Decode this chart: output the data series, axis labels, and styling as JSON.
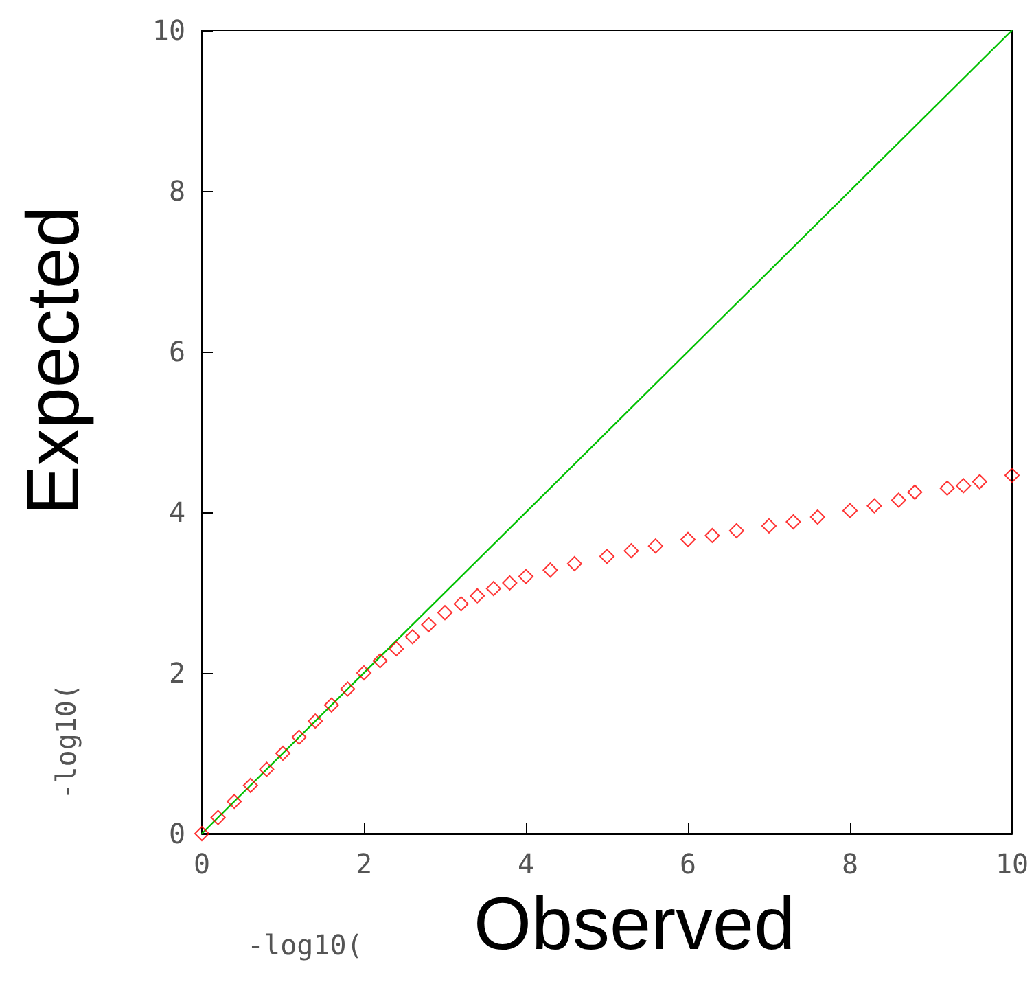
{
  "chart_data": {
    "type": "scatter",
    "xlabel": "-log10(",
    "ylabel": "-log10(",
    "annotations": [
      "Observed",
      "Expected"
    ],
    "xlim": [
      0,
      10
    ],
    "ylim": [
      0,
      10
    ],
    "xticks": [
      0,
      2,
      4,
      6,
      8,
      10
    ],
    "yticks": [
      0,
      2,
      4,
      6,
      8,
      10
    ],
    "grid": false,
    "marker": "diamond",
    "series": [
      {
        "color": "#ff0000",
        "x": [
          0,
          0.2,
          0.4,
          0.6,
          0.8,
          1,
          1.2,
          1.4,
          1.6,
          1.8,
          2,
          2.2,
          2.4,
          2.6,
          2.8,
          3,
          3.2,
          3.4,
          3.6,
          3.8,
          4,
          4.3,
          4.6,
          5,
          5.3,
          5.6,
          6,
          6.3,
          6.6,
          7,
          7.3,
          7.6,
          8,
          8.3,
          8.6,
          8.8,
          9.2,
          9.4,
          9.6,
          10
        ],
        "values": [
          0,
          0.2,
          0.4,
          0.6,
          0.8,
          1,
          1.2,
          1.4,
          1.6,
          1.8,
          2,
          2.15,
          2.3,
          2.45,
          2.6,
          2.75,
          2.86,
          2.96,
          3.05,
          3.12,
          3.2,
          3.28,
          3.36,
          3.45,
          3.52,
          3.58,
          3.66,
          3.71,
          3.77,
          3.83,
          3.88,
          3.94,
          4.02,
          4.08,
          4.15,
          4.25,
          4.3,
          4.33,
          4.38,
          4.46
        ]
      },
      {
        "type": "line",
        "color": "#00c000",
        "marker": "none",
        "x": [
          0,
          10
        ],
        "values": [
          0,
          10
        ]
      }
    ]
  }
}
